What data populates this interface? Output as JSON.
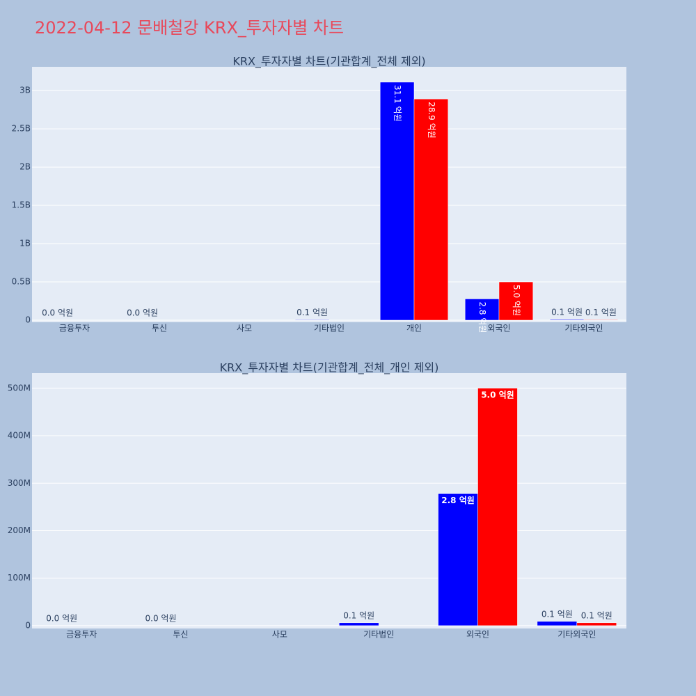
{
  "title": "2022-04-12 문배철강 KRX_투자자별 차트",
  "chart_data": [
    {
      "type": "bar",
      "title": "KRX_투자자별 차트(기관합계_전체 제외)",
      "categories": [
        "금융투자",
        "투신",
        "사모",
        "기타법인",
        "개인",
        "외국인",
        "기타외국인"
      ],
      "series": [
        {
          "color": "#0000ff",
          "values": [
            0,
            0,
            null,
            6000000,
            3110000000,
            278000000,
            9000000
          ],
          "value_labels": [
            "0.0 억원",
            "0.0 억원",
            null,
            "0.1 억원",
            "31.1 억원",
            "2.8 억원",
            "0.1 억원"
          ]
        },
        {
          "color": "#ff0000",
          "values": [
            null,
            null,
            null,
            null,
            2890000000,
            500000000,
            6000000
          ],
          "value_labels": [
            null,
            null,
            null,
            null,
            "28.9 억원",
            "5.0 억원",
            "0.1 억원"
          ]
        }
      ],
      "ylim": [
        -27000000,
        3310000000
      ],
      "yticks": [
        0,
        {
          "value": 500000000,
          "label": "0.5B"
        },
        {
          "value": 1000000000,
          "label": "1B"
        },
        {
          "value": 1500000000,
          "label": "1.5B"
        },
        {
          "value": 2000000000,
          "label": "2B"
        },
        {
          "value": 2500000000,
          "label": "2.5B"
        },
        {
          "value": 3000000000,
          "label": "3B"
        }
      ],
      "grid": true
    },
    {
      "type": "bar",
      "title": "KRX_투자자별 차트(기관합계_전체_개인 제외)",
      "categories": [
        "금융투자",
        "투신",
        "사모",
        "기타법인",
        "외국인",
        "기타외국인"
      ],
      "series": [
        {
          "color": "#0000ff",
          "values": [
            0,
            0,
            null,
            6000000,
            278000000,
            9000000
          ],
          "value_labels": [
            "0.0 억원",
            "0.0 억원",
            null,
            "0.1 억원",
            "2.8 억원",
            "0.1 억원"
          ]
        },
        {
          "color": "#ff0000",
          "values": [
            null,
            null,
            null,
            null,
            500000000,
            6000000
          ],
          "value_labels": [
            null,
            null,
            null,
            null,
            "5.0 억원",
            "0.1 억원"
          ]
        }
      ],
      "ylim": [
        -6000000,
        532000000
      ],
      "yticks": [
        0,
        {
          "value": 100000000,
          "label": "100M"
        },
        {
          "value": 200000000,
          "label": "200M"
        },
        {
          "value": 300000000,
          "label": "300M"
        },
        {
          "value": 400000000,
          "label": "400M"
        },
        {
          "value": 500000000,
          "label": "500M"
        }
      ],
      "grid": true
    }
  ]
}
